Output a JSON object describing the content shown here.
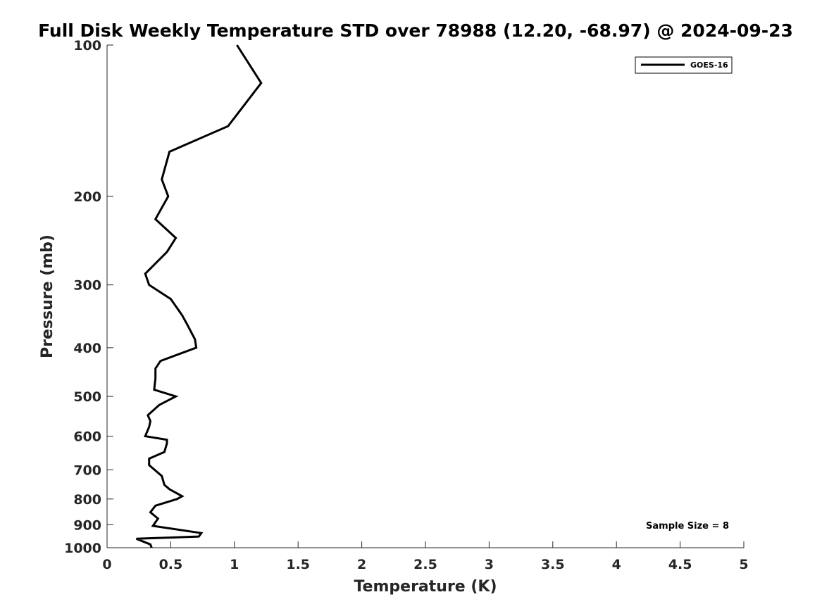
{
  "chart_data": {
    "type": "line",
    "title": "Full Disk Weekly Temperature STD over 78988 (12.20, -68.97) @ 2024-09-23",
    "xlabel": "Temperature (K)",
    "ylabel": "Pressure (mb)",
    "xlim": [
      0,
      5
    ],
    "ylim": [
      1000,
      100
    ],
    "y_scale": "log",
    "y_inverted": true,
    "grid": false,
    "legend_position": "top-right",
    "xticks": [
      0,
      0.5,
      1,
      1.5,
      2,
      2.5,
      3,
      3.5,
      4,
      4.5,
      5
    ],
    "xtick_labels": [
      "0",
      "0.5",
      "1",
      "1.5",
      "2",
      "2.5",
      "3",
      "3.5",
      "4",
      "4.5",
      "5"
    ],
    "yticks": [
      100,
      200,
      300,
      400,
      500,
      600,
      700,
      800,
      900,
      1000
    ],
    "ytick_labels": [
      "100",
      "200",
      "300",
      "400",
      "500",
      "600",
      "700",
      "800",
      "900",
      "1000"
    ],
    "series": [
      {
        "name": "GOES-16",
        "color": "#000000",
        "x": [
          0.35,
          0.34,
          0.23,
          0.72,
          0.74,
          0.36,
          0.4,
          0.34,
          0.38,
          0.55,
          0.59,
          0.49,
          0.45,
          0.43,
          0.33,
          0.33,
          0.45,
          0.47,
          0.47,
          0.3,
          0.33,
          0.34,
          0.32,
          0.41,
          0.54,
          0.37,
          0.38,
          0.38,
          0.42,
          0.7,
          0.69,
          0.63,
          0.59,
          0.5,
          0.33,
          0.3,
          0.47,
          0.54,
          0.38,
          0.48,
          0.43,
          0.49,
          0.95,
          1.21,
          1.02
        ],
        "y": [
          1000,
          985,
          960,
          950,
          935,
          905,
          875,
          850,
          825,
          800,
          790,
          765,
          750,
          720,
          685,
          665,
          645,
          620,
          610,
          600,
          575,
          560,
          545,
          520,
          500,
          485,
          460,
          440,
          425,
          400,
          385,
          360,
          345,
          320,
          300,
          285,
          258,
          242,
          222,
          200,
          185,
          163,
          145,
          119,
          100
        ]
      }
    ],
    "annotation": "Sample Size = 8"
  }
}
